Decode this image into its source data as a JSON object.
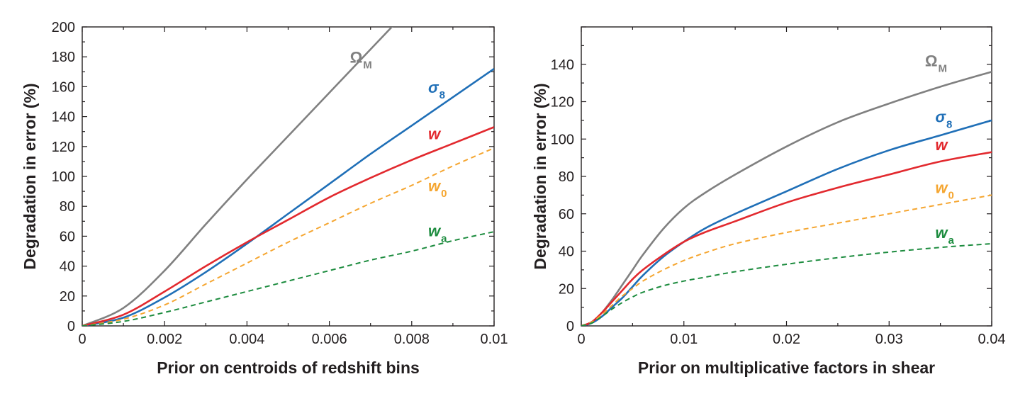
{
  "chart_data": [
    {
      "type": "line",
      "xlabel": "Prior on centroids of redshift bins",
      "ylabel": "Degradation in error (%)",
      "xlim": [
        0,
        0.01
      ],
      "ylim": [
        0,
        200
      ],
      "xticks": [
        0,
        0.002,
        0.004,
        0.006,
        0.008,
        0.01
      ],
      "xtick_labels": [
        "0",
        "0.002",
        "0.004",
        "0.006",
        "0.008",
        "0.01"
      ],
      "yticks": [
        0,
        20,
        40,
        60,
        80,
        100,
        120,
        140,
        160,
        180,
        200
      ],
      "ytick_labels": [
        "0",
        "20",
        "40",
        "60",
        "80",
        "100",
        "120",
        "140",
        "160",
        "180",
        "200"
      ],
      "series": [
        {
          "name": "Ω",
          "sub": "M",
          "color": "#808080",
          "dash": "solid",
          "x": [
            0,
            0.001,
            0.002,
            0.003,
            0.004,
            0.005,
            0.006,
            0.007,
            0.008
          ],
          "y": [
            0,
            12,
            37,
            68,
            98,
            127,
            156,
            185,
            214
          ],
          "label_at": [
            0.0065,
            176
          ]
        },
        {
          "name": "σ",
          "sub": "8",
          "color": "#1f6fb7",
          "dash": "solid",
          "x": [
            0,
            0.001,
            0.002,
            0.003,
            0.004,
            0.005,
            0.006,
            0.007,
            0.008,
            0.009,
            0.01
          ],
          "y": [
            0,
            5.5,
            19,
            36,
            55,
            75,
            95,
            115,
            134,
            153,
            172
          ],
          "label_at": [
            0.0084,
            156
          ]
        },
        {
          "name": "w",
          "sub": "",
          "color": "#e2292e",
          "dash": "solid",
          "x": [
            0,
            0.001,
            0.002,
            0.003,
            0.004,
            0.005,
            0.006,
            0.007,
            0.008,
            0.009,
            0.01
          ],
          "y": [
            0,
            7.5,
            23,
            40,
            56,
            71,
            86,
            99,
            111,
            122,
            133
          ],
          "label_at": [
            0.0084,
            125
          ]
        },
        {
          "name": "w",
          "sub": "0",
          "color": "#f5a631",
          "dash": "dashed",
          "x": [
            0,
            0.001,
            0.002,
            0.003,
            0.004,
            0.005,
            0.006,
            0.007,
            0.008,
            0.009,
            0.01
          ],
          "y": [
            0,
            4.5,
            14,
            28,
            42,
            56,
            69,
            82,
            94,
            107,
            119
          ],
          "label_at": [
            0.0084,
            90
          ]
        },
        {
          "name": "w",
          "sub": "a",
          "color": "#1d8c3f",
          "dash": "dashed",
          "x": [
            0,
            0.001,
            0.002,
            0.003,
            0.004,
            0.005,
            0.006,
            0.007,
            0.008,
            0.009,
            0.01
          ],
          "y": [
            0,
            3,
            9,
            16,
            23,
            30,
            37,
            44,
            50,
            57,
            63
          ],
          "label_at": [
            0.0084,
            60
          ]
        }
      ]
    },
    {
      "type": "line",
      "xlabel": "Prior on multiplicative factors in shear",
      "ylabel": "Degradation in error (%)",
      "xlim": [
        0,
        0.04
      ],
      "ylim": [
        0,
        160
      ],
      "xticks": [
        0,
        0.01,
        0.02,
        0.03,
        0.04
      ],
      "xtick_labels": [
        "0",
        "0.01",
        "0.02",
        "0.03",
        "0.04"
      ],
      "yticks": [
        0,
        20,
        40,
        60,
        80,
        100,
        120,
        140
      ],
      "ytick_labels": [
        "0",
        "20",
        "40",
        "60",
        "80",
        "100",
        "120",
        "140"
      ],
      "series": [
        {
          "name": "Ω",
          "sub": "M",
          "color": "#808080",
          "dash": "solid",
          "x": [
            0,
            0.001,
            0.002,
            0.003,
            0.004,
            0.005,
            0.006,
            0.008,
            0.01,
            0.012,
            0.015,
            0.02,
            0.025,
            0.03,
            0.035,
            0.04
          ],
          "y": [
            0,
            2,
            7,
            14,
            22,
            30,
            38,
            52,
            63,
            71,
            81,
            96,
            109,
            119,
            128,
            136
          ],
          "label_at": [
            0.0335,
            139
          ]
        },
        {
          "name": "σ",
          "sub": "8",
          "color": "#1f6fb7",
          "dash": "solid",
          "x": [
            0,
            0.001,
            0.002,
            0.003,
            0.004,
            0.005,
            0.006,
            0.008,
            0.01,
            0.012,
            0.015,
            0.02,
            0.025,
            0.03,
            0.035,
            0.04
          ],
          "y": [
            0,
            1.5,
            5,
            10,
            15,
            21,
            27,
            37,
            45,
            52,
            60,
            72,
            84,
            94,
            102,
            110
          ],
          "label_at": [
            0.0345,
            109
          ]
        },
        {
          "name": "w",
          "sub": "",
          "color": "#e2292e",
          "dash": "solid",
          "x": [
            0,
            0.001,
            0.002,
            0.003,
            0.004,
            0.005,
            0.006,
            0.008,
            0.01,
            0.012,
            0.015,
            0.02,
            0.025,
            0.03,
            0.035,
            0.04
          ],
          "y": [
            0,
            2,
            7,
            13,
            19,
            25,
            30,
            38,
            45,
            50,
            56,
            66,
            74,
            81,
            88,
            93
          ],
          "label_at": [
            0.0345,
            94
          ]
        },
        {
          "name": "w",
          "sub": "0",
          "color": "#f5a631",
          "dash": "dashed",
          "x": [
            0,
            0.001,
            0.002,
            0.003,
            0.004,
            0.005,
            0.006,
            0.008,
            0.01,
            0.012,
            0.015,
            0.02,
            0.025,
            0.03,
            0.035,
            0.04
          ],
          "y": [
            0,
            2,
            6,
            11,
            16,
            20,
            24,
            30,
            35,
            39,
            44,
            50,
            55,
            60,
            65,
            70
          ],
          "label_at": [
            0.0345,
            71
          ]
        },
        {
          "name": "w",
          "sub": "a",
          "color": "#1d8c3f",
          "dash": "dashed",
          "x": [
            0,
            0.001,
            0.002,
            0.003,
            0.004,
            0.005,
            0.006,
            0.008,
            0.01,
            0.012,
            0.015,
            0.02,
            0.025,
            0.03,
            0.035,
            0.04
          ],
          "y": [
            0,
            1.5,
            5,
            9,
            12.5,
            15.5,
            18,
            21.5,
            24,
            26,
            29,
            33,
            36.5,
            39.5,
            42,
            44
          ],
          "label_at": [
            0.0345,
            47
          ]
        }
      ]
    }
  ]
}
